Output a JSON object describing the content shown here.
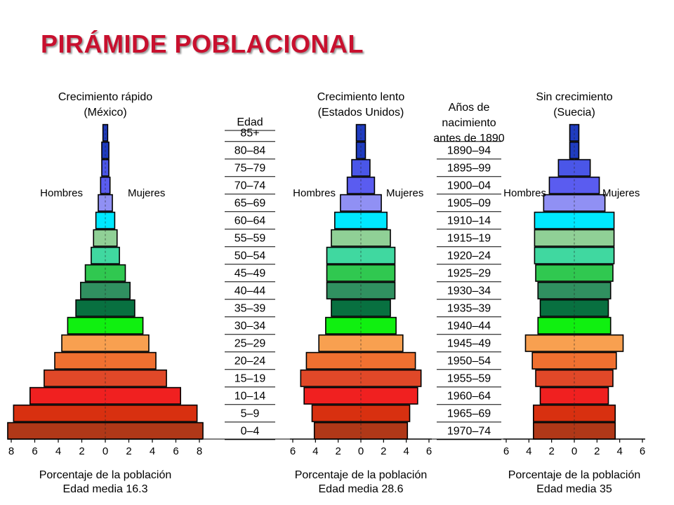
{
  "title": "PIRÁMIDE POBLACIONAL",
  "age_header": "Edad",
  "birth_header": [
    "Años de",
    "nacimiento",
    "antes de 1890"
  ],
  "age_groups": [
    "85+",
    "80–84",
    "75–79",
    "70–74",
    "65–69",
    "60–64",
    "55–59",
    "50–54",
    "45–49",
    "40–44",
    "35–39",
    "30–34",
    "25–29",
    "20–24",
    "15–19",
    "10–14",
    "5–9",
    "0–4"
  ],
  "birth_years": [
    "1890–94",
    "1895–99",
    "1900–04",
    "1905–09",
    "1910–14",
    "1915–19",
    "1920–24",
    "1925–29",
    "1930–34",
    "1935–39",
    "1940–44",
    "1945–49",
    "1950–54",
    "1955–59",
    "1960–64",
    "1965–69",
    "1970–74"
  ],
  "band_colors": [
    "#1f3cc0",
    "#1f3cc0",
    "#4a56e8",
    "#5a5cf0",
    "#9090f4",
    "#00e8ff",
    "#90d096",
    "#40d8a0",
    "#30c850",
    "#309060",
    "#087040",
    "#10f010",
    "#f8a050",
    "#f07030",
    "#e04828",
    "#f02020",
    "#d83010",
    "#b03818"
  ],
  "pyramids": [
    {
      "caption": [
        "Crecimiento rápido",
        "(México)"
      ],
      "men_label": "Hombres",
      "women_label": "Mujeres",
      "axis_max": 8,
      "ticks": [
        "8",
        "6",
        "4",
        "2",
        "0",
        "2",
        "4",
        "6",
        "8"
      ],
      "axis_label": "Porcentaje de la población",
      "median_label": "Edad media 16.3",
      "values": [
        0.2,
        0.3,
        0.3,
        0.4,
        0.6,
        0.8,
        1.0,
        1.2,
        1.7,
        2.1,
        2.5,
        3.2,
        3.7,
        4.3,
        5.2,
        6.4,
        7.8,
        8.3
      ]
    },
    {
      "caption": [
        "Crecimiento lento",
        "(Estados Unidos)"
      ],
      "men_label": "Hombres",
      "women_label": "Mujeres",
      "axis_max": 6,
      "ticks": [
        "6",
        "4",
        "2",
        "0",
        "2",
        "4",
        "6"
      ],
      "axis_label": "Porcentaje de la población",
      "median_label": "Edad media 28.6",
      "values": [
        0.4,
        0.4,
        0.8,
        1.2,
        1.8,
        2.3,
        2.6,
        3.0,
        3.0,
        3.0,
        2.6,
        3.1,
        3.7,
        4.8,
        5.3,
        5.0,
        4.3,
        4.1
      ]
    },
    {
      "caption": [
        "Sin crecimiento",
        "(Suecia)"
      ],
      "men_label": "Hombres",
      "women_label": "Mujeres",
      "axis_max": 6,
      "ticks": [
        "6",
        "4",
        "2",
        "0",
        "2",
        "4",
        "6"
      ],
      "axis_label": "Porcentaje de la población",
      "median_label": "Edad media 35",
      "values": [
        0.4,
        0.4,
        1.4,
        2.2,
        2.7,
        3.5,
        3.5,
        3.5,
        3.4,
        3.2,
        3.0,
        3.2,
        4.3,
        3.7,
        3.4,
        3.0,
        3.6,
        3.6
      ]
    }
  ]
}
